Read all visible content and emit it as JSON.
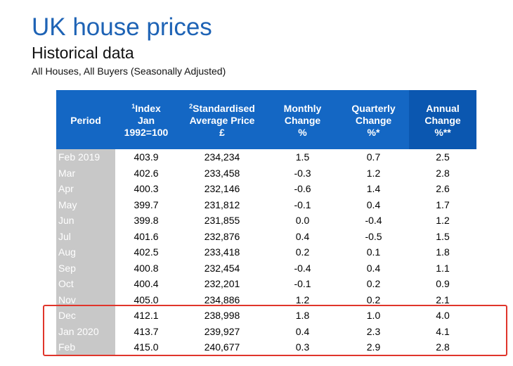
{
  "title": "UK house prices",
  "subtitle": "Historical data",
  "caption": "All Houses, All Buyers (Seasonally Adjusted)",
  "colors": {
    "title": "#1e63b5",
    "header_bg": "#1467c4",
    "header_annual_bg": "#0b57b0",
    "period_bg": "#c8c8c8",
    "highlight_border": "#e0352b"
  },
  "chart_data": {
    "type": "table",
    "columns": [
      {
        "key": "period",
        "sup": "",
        "lines": [
          "Period"
        ]
      },
      {
        "key": "index",
        "sup": "1",
        "lines": [
          "Index",
          "Jan",
          "1992=100"
        ]
      },
      {
        "key": "price",
        "sup": "2",
        "lines": [
          "Standardised",
          "Average Price",
          "£"
        ]
      },
      {
        "key": "monthly",
        "sup": "",
        "lines": [
          "Monthly",
          "Change",
          "%"
        ]
      },
      {
        "key": "quarterly",
        "sup": "",
        "lines": [
          "Quarterly",
          "Change",
          "%*"
        ]
      },
      {
        "key": "annual",
        "sup": "",
        "lines": [
          "Annual",
          "Change",
          "%**"
        ]
      }
    ],
    "rows": [
      {
        "period": "Feb 2019",
        "index": "403.9",
        "price": "234,234",
        "monthly": "1.5",
        "quarterly": "0.7",
        "annual": "2.5"
      },
      {
        "period": "Mar",
        "index": "402.6",
        "price": "233,458",
        "monthly": "-0.3",
        "quarterly": "1.2",
        "annual": "2.8"
      },
      {
        "period": "Apr",
        "index": "400.3",
        "price": "232,146",
        "monthly": "-0.6",
        "quarterly": "1.4",
        "annual": "2.6"
      },
      {
        "period": "May",
        "index": "399.7",
        "price": "231,812",
        "monthly": "-0.1",
        "quarterly": "0.4",
        "annual": "1.7"
      },
      {
        "period": "Jun",
        "index": "399.8",
        "price": "231,855",
        "monthly": "0.0",
        "quarterly": "-0.4",
        "annual": "1.2"
      },
      {
        "period": "Jul",
        "index": "401.6",
        "price": "232,876",
        "monthly": "0.4",
        "quarterly": "-0.5",
        "annual": "1.5"
      },
      {
        "period": "Aug",
        "index": "402.5",
        "price": "233,418",
        "monthly": "0.2",
        "quarterly": "0.1",
        "annual": "1.8"
      },
      {
        "period": "Sep",
        "index": "400.8",
        "price": "232,454",
        "monthly": "-0.4",
        "quarterly": "0.4",
        "annual": "1.1"
      },
      {
        "period": "Oct",
        "index": "400.4",
        "price": "232,201",
        "monthly": "-0.1",
        "quarterly": "0.2",
        "annual": "0.9"
      },
      {
        "period": "Nov",
        "index": "405.0",
        "price": "234,886",
        "monthly": "1.2",
        "quarterly": "0.2",
        "annual": "2.1"
      },
      {
        "period": "Dec",
        "index": "412.1",
        "price": "238,998",
        "monthly": "1.8",
        "quarterly": "1.0",
        "annual": "4.0"
      },
      {
        "period": "Jan 2020",
        "index": "413.7",
        "price": "239,927",
        "monthly": "0.4",
        "quarterly": "2.3",
        "annual": "4.1"
      },
      {
        "period": "Feb",
        "index": "415.0",
        "price": "240,677",
        "monthly": "0.3",
        "quarterly": "2.9",
        "annual": "2.8"
      }
    ],
    "highlighted_rows": [
      "Dec",
      "Jan 2020",
      "Feb"
    ]
  }
}
